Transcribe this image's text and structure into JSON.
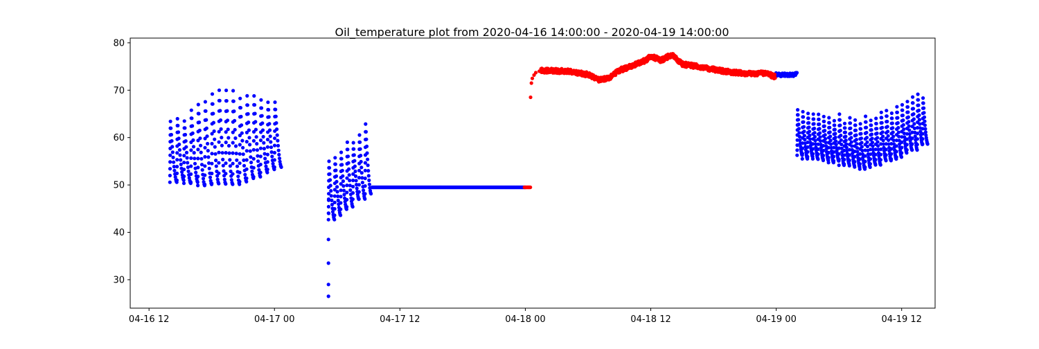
{
  "chart_data": {
    "type": "scatter",
    "title": "Oil_temperature plot from 2020-04-16 14:00:00 - 2020-04-19 14:00:00",
    "xlabel": "",
    "ylabel": "",
    "x_axis": {
      "kind": "datetime",
      "range": [
        "2020-04-16 10:12",
        "2020-04-19 15:12"
      ],
      "ticks": [
        "2020-04-16 12:00",
        "2020-04-17 00:00",
        "2020-04-17 12:00",
        "2020-04-18 00:00",
        "2020-04-18 12:00",
        "2020-04-19 00:00",
        "2020-04-19 12:00"
      ],
      "tick_labels": [
        "04-16 12",
        "04-17 00",
        "04-17 12",
        "04-18 00",
        "04-18 12",
        "04-19 00",
        "04-19 12"
      ]
    },
    "y_axis": {
      "range": [
        24,
        81
      ],
      "ticks": [
        30,
        40,
        50,
        60,
        70,
        80
      ],
      "tick_labels": [
        "30",
        "40",
        "50",
        "60",
        "70",
        "80"
      ]
    },
    "grid": false,
    "legend": "none",
    "colors": {
      "normal": "#0000ff",
      "anomaly": "#ff0000"
    },
    "series": [
      {
        "color": "#0000ff",
        "segments": [
          {
            "pattern": "oscillating",
            "start": "2020-04-16 14:00",
            "end": "2020-04-17 00:30",
            "cycle_minutes": 40,
            "low_start": 51.0,
            "low_end": 54.5,
            "high_start": 62.5,
            "high_end": 66.5,
            "low_mid": 49.7,
            "high_mid": 70.0
          },
          {
            "pattern": "oscillating",
            "start": "2020-04-17 05:10",
            "end": "2020-04-17 09:10",
            "cycle_minutes": 35,
            "low_start": 43.0,
            "low_end": 49.0,
            "high_start": 54.0,
            "high_end": 63.5
          },
          {
            "pattern": "points",
            "x": [
              "2020-04-17 05:10",
              "2020-04-17 05:10",
              "2020-04-17 05:10",
              "2020-04-17 05:10",
              "2020-04-17 05:11",
              "2020-04-17 05:11"
            ],
            "y": [
              26.5,
              29.0,
              33.5,
              38.5,
              44.0,
              47.0
            ]
          },
          {
            "pattern": "flat",
            "start": "2020-04-17 09:20",
            "end": "2020-04-18 00:00",
            "value": 49.5
          },
          {
            "pattern": "noisy",
            "start": "2020-04-18 23:55",
            "end": "2020-04-19 02:00",
            "value": 73.3,
            "noise": 0.4
          },
          {
            "pattern": "oscillating",
            "start": "2020-04-19 02:00",
            "end": "2020-04-19 14:30",
            "cycle_minutes": 30,
            "low_start": 56.0,
            "low_end": 59.0,
            "high_start": 65.0,
            "high_end": 69.5,
            "low_mid": 53.5,
            "high_mid": 63.5
          }
        ]
      },
      {
        "color": "#ff0000",
        "segments": [
          {
            "pattern": "flat",
            "start": "2020-04-17 23:55",
            "end": "2020-04-18 00:30",
            "value": 49.5
          },
          {
            "pattern": "points",
            "x": [
              "2020-04-18 00:30",
              "2020-04-18 00:35",
              "2020-04-18 00:40",
              "2020-04-18 00:50",
              "2020-04-18 01:00",
              "2020-04-18 01:20"
            ],
            "y": [
              68.5,
              71.5,
              72.5,
              73.2,
              73.7,
              74.0
            ]
          },
          {
            "pattern": "profile",
            "x": [
              "2020-04-18 01:30",
              "2020-04-18 04:00",
              "2020-04-18 06:00",
              "2020-04-18 07:00",
              "2020-04-18 08:00",
              "2020-04-18 09:00",
              "2020-04-18 10:00",
              "2020-04-18 11:30",
              "2020-04-18 12:00",
              "2020-04-18 13:00",
              "2020-04-18 14:00",
              "2020-04-18 15:00",
              "2020-04-18 17:00",
              "2020-04-18 19:00",
              "2020-04-18 21:00",
              "2020-04-18 23:00",
              "2020-04-18 23:55"
            ],
            "y": [
              74.2,
              74.0,
              73.3,
              72.2,
              72.6,
              74.2,
              75.0,
              76.3,
              77.2,
              76.3,
              77.5,
              75.5,
              74.8,
              74.0,
              73.5,
              73.6,
              72.8
            ],
            "noise": 0.5
          }
        ]
      }
    ]
  }
}
